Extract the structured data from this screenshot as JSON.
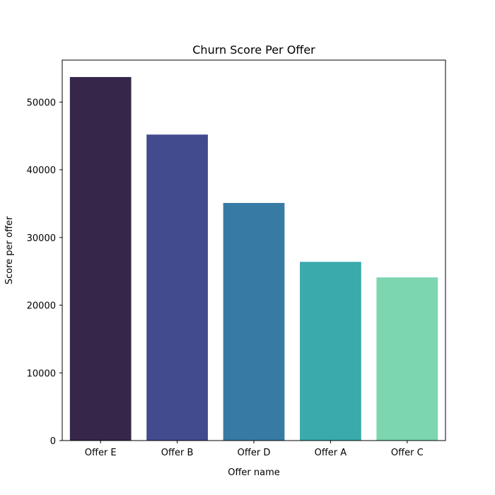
{
  "chart_data": {
    "type": "bar",
    "title": "Churn Score Per Offer",
    "xlabel": "Offer name",
    "ylabel": "Score per offer",
    "categories": [
      "Offer E",
      "Offer B",
      "Offer D",
      "Offer A",
      "Offer C"
    ],
    "values": [
      53700,
      45200,
      35100,
      26400,
      24100
    ],
    "colors": [
      "#35264a",
      "#414b8e",
      "#377ba4",
      "#3aaaac",
      "#7cd6b0"
    ],
    "ylim": [
      0,
      56200
    ],
    "yticks": [
      0,
      10000,
      20000,
      30000,
      40000,
      50000
    ],
    "grid": false,
    "legend": "none"
  }
}
